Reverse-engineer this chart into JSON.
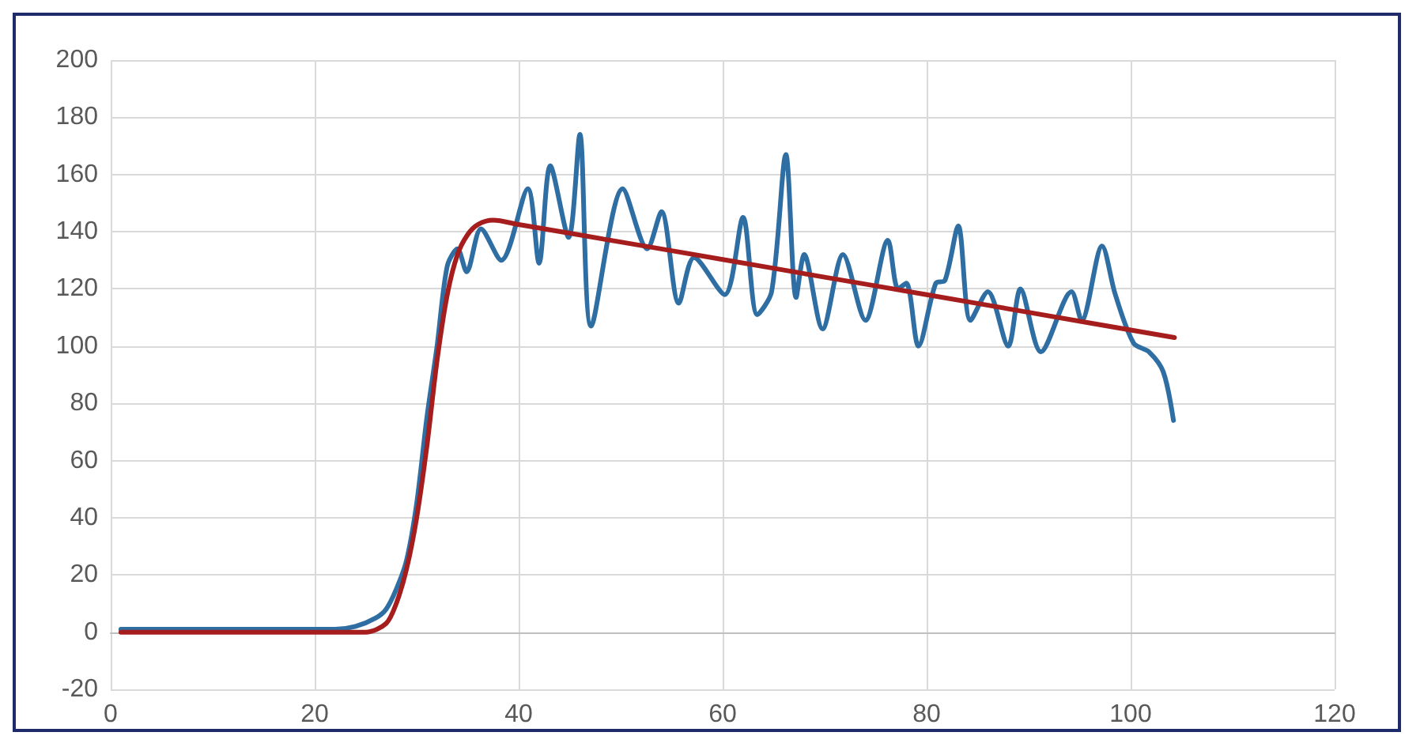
{
  "chart_data": {
    "type": "line",
    "xlim": [
      0,
      120
    ],
    "xticks": [
      0,
      20,
      40,
      60,
      80,
      100,
      120
    ],
    "ylim": [
      -20,
      200
    ],
    "yticks": [
      -20,
      0,
      20,
      40,
      60,
      80,
      100,
      120,
      140,
      160,
      180,
      200
    ],
    "grid": true,
    "marker": "none",
    "line_style": "solid",
    "series": [
      {
        "color": "#2f6ea3",
        "x": [
          1,
          5,
          10,
          15,
          20,
          22,
          24,
          26,
          27,
          28,
          29,
          30,
          31,
          32,
          33,
          34,
          34.9,
          36.3,
          38.3,
          40.9,
          42,
          43.1,
          44.9,
          46,
          47.1,
          50.2,
          52.6,
          54,
          55.7,
          57.2,
          60.2,
          62,
          63.4,
          64.8,
          66.2,
          67.2,
          68,
          69.8,
          71.8,
          74,
          76.2,
          77.2,
          78,
          79.2,
          80.9,
          81.8,
          83.1,
          84.3,
          86,
          88,
          89.2,
          91.2,
          94.2,
          95.2,
          97.2,
          98.5,
          100.3,
          101.8,
          103.2,
          104.2
        ],
        "values": [
          1,
          1,
          1,
          1,
          1,
          1,
          2,
          5,
          8,
          15,
          25,
          45,
          75,
          100,
          128,
          134,
          126,
          141,
          130,
          155,
          129,
          163,
          138,
          174,
          107,
          155,
          134,
          147,
          115,
          131,
          118,
          145,
          111,
          119,
          167,
          117,
          132,
          106,
          132,
          109,
          137,
          120,
          122,
          100,
          122,
          123,
          142,
          109,
          119,
          100,
          120,
          98,
          119,
          109,
          135,
          118,
          101,
          98,
          91,
          74
        ]
      },
      {
        "color": "#a51d1d",
        "x": [
          1,
          10,
          20,
          25,
          27,
          28,
          29,
          30,
          31,
          32,
          33,
          34,
          35,
          36,
          37.5,
          40,
          50,
          60,
          70,
          80,
          90,
          104.3
        ],
        "values": [
          0,
          0,
          0,
          0,
          3,
          10,
          22,
          40,
          65,
          95,
          118,
          132,
          139,
          142.5,
          144,
          142.5,
          136.4,
          130.3,
          124.1,
          118,
          111.8,
          103
        ]
      }
    ]
  }
}
